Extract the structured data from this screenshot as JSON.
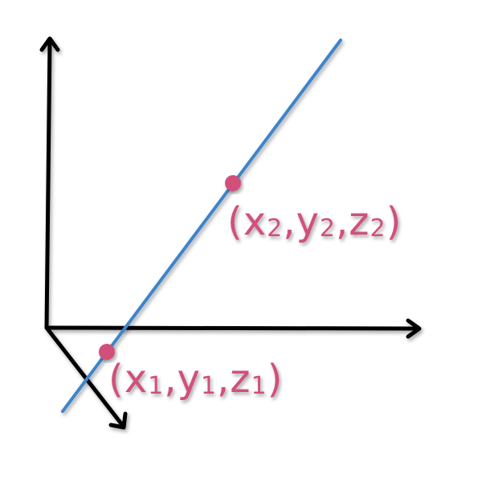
{
  "colors": {
    "axis": "#000000",
    "line": "#3d85cc",
    "point": "#d1507a"
  },
  "points": [
    {
      "name": "p2",
      "label": {
        "open": "(",
        "sep1": ",",
        "sep2": ",",
        "close": ")",
        "x": "x",
        "xs": "2",
        "y": "y",
        "ys": "2",
        "z": "z",
        "zs": "2"
      }
    },
    {
      "name": "p1",
      "label": {
        "open": "(",
        "sep1": ",",
        "sep2": ",",
        "close": ")",
        "x": "x",
        "xs": "1",
        "y": "y",
        "ys": "1",
        "z": "z",
        "zs": "1"
      }
    }
  ]
}
